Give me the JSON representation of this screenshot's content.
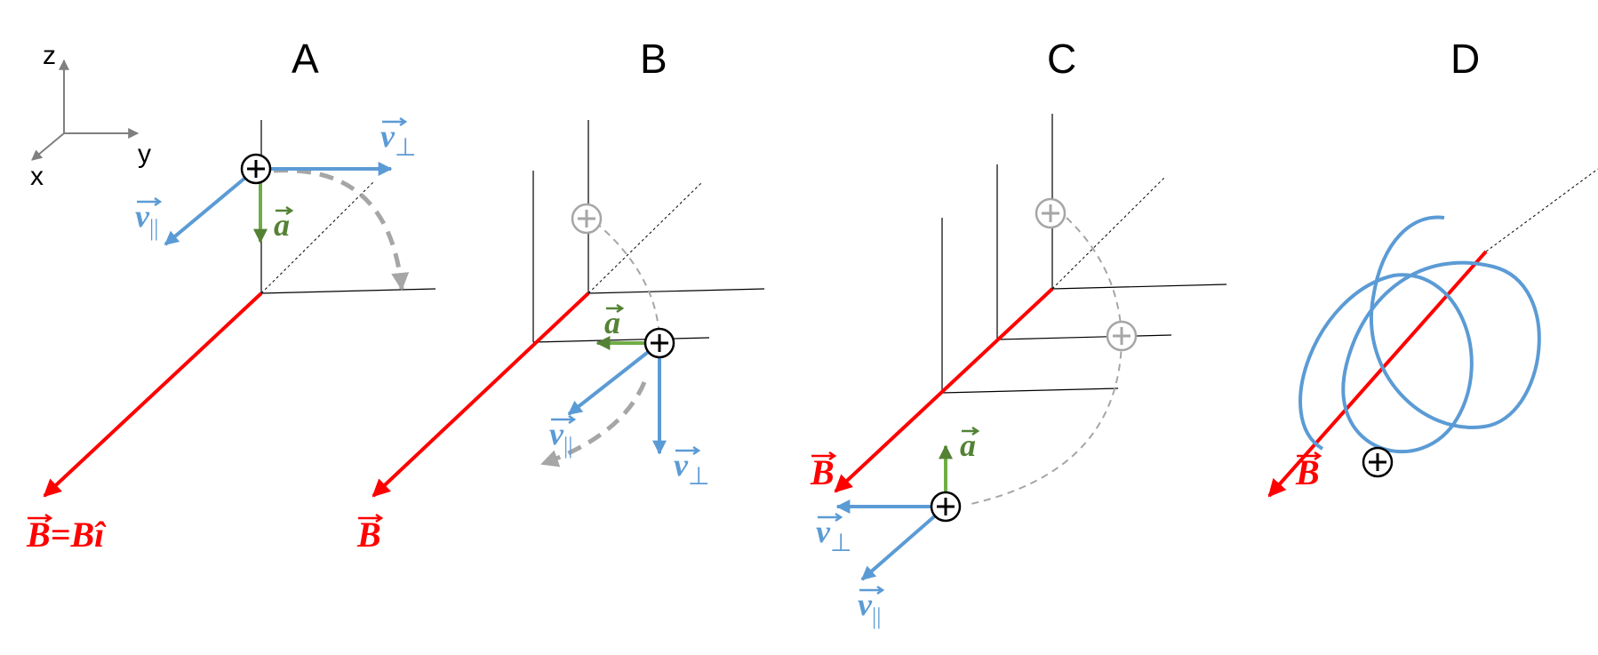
{
  "axes": {
    "z": "z",
    "y": "y",
    "x": "x"
  },
  "panels": [
    {
      "title": "A"
    },
    {
      "title": "B"
    },
    {
      "title": "C"
    },
    {
      "title": "D"
    }
  ],
  "labels": {
    "b_hat": "B=B",
    "b_hat_i": "î",
    "b": "B",
    "v": "v",
    "a": "a",
    "perp": "⊥",
    "par": "||"
  },
  "colors": {
    "field": "#ff0000",
    "velocity": "#5b9bd5",
    "acceleration": "#548235",
    "ghost": "#a6a6a6"
  }
}
